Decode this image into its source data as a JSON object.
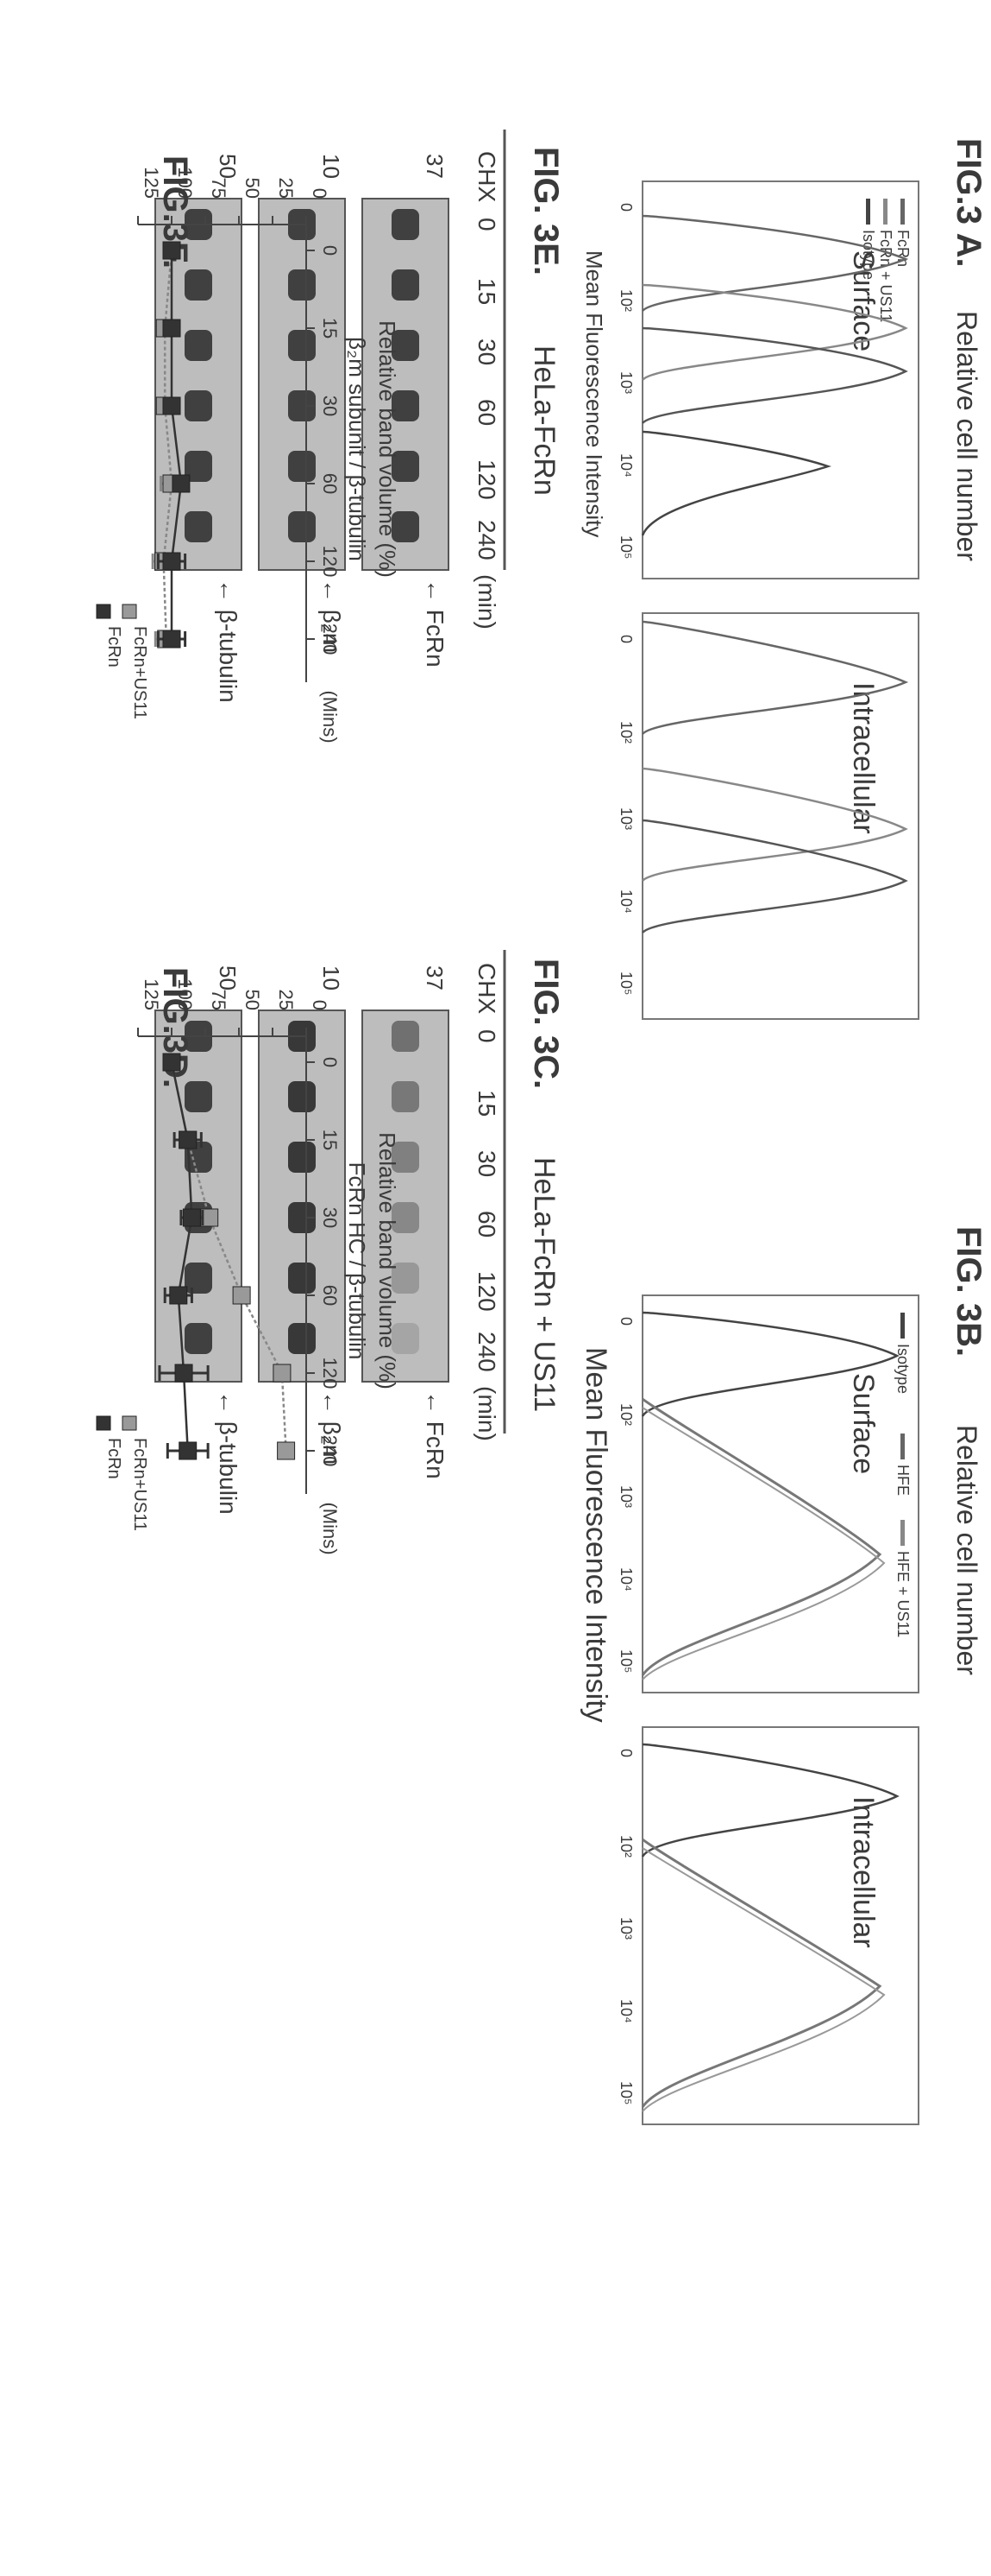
{
  "figure_labels": {
    "fig3a": "FIG.3 A.",
    "fig3b": "FIG. 3B.",
    "fig3c": "FIG. 3C.",
    "fig3d": "FIG.3D.",
    "fig3e": "FIG. 3E.",
    "fig3f": "FIG.3F."
  },
  "flow": {
    "ylabel": "Relative cell number",
    "xlabel": "Mean Fluorescence Intensity",
    "surface_title": "Surface",
    "intracellular_title": "Intracellular",
    "xticks": [
      "0",
      "10²",
      "10³",
      "10⁴",
      "10⁵"
    ],
    "legend_3a": [
      "FcRn",
      "FcRn + US11",
      "Isotype"
    ],
    "legend_3b": [
      "Isotype",
      "HFE",
      "HFE + US11"
    ]
  },
  "blots": {
    "3c": {
      "title": "HeLa-FcRn + US11",
      "lanes": [
        "CHX",
        "0",
        "15",
        "30",
        "60",
        "120",
        "240",
        "(min)"
      ],
      "rows": [
        {
          "mw": "37",
          "label": "FcRn",
          "intensity": [
            0.55,
            0.5,
            0.45,
            0.4,
            0.3,
            0.22
          ]
        },
        {
          "mw": "10",
          "label": "β₂m",
          "intensity": [
            0.9,
            0.9,
            0.9,
            0.9,
            0.9,
            0.9
          ]
        },
        {
          "mw": "50",
          "label": "β-tubulin",
          "intensity": [
            0.85,
            0.85,
            0.85,
            0.85,
            0.85,
            0.85
          ]
        }
      ]
    },
    "3e": {
      "title": "HeLa-FcRn",
      "lanes": [
        "CHX",
        "0",
        "15",
        "30",
        "60",
        "120",
        "240",
        "(min)"
      ],
      "rows": [
        {
          "mw": "37",
          "label": "FcRn",
          "intensity": [
            0.85,
            0.85,
            0.85,
            0.85,
            0.85,
            0.85
          ]
        },
        {
          "mw": "10",
          "label": "β₂m",
          "intensity": [
            0.85,
            0.85,
            0.85,
            0.85,
            0.85,
            0.85
          ]
        },
        {
          "mw": "50",
          "label": "β-tubulin",
          "intensity": [
            0.85,
            0.85,
            0.85,
            0.85,
            0.85,
            0.85
          ]
        }
      ]
    }
  },
  "chart_data": [
    {
      "type": "line",
      "panel": "FIG.3D.",
      "ylabel": "Relative band volume (%) FcRn HC / β-tubulin",
      "xlabel": "(Mins)",
      "categories": [
        "0",
        "15",
        "30",
        "60",
        "120",
        "240"
      ],
      "yticks": [
        "0",
        "25",
        "50",
        "75",
        "100",
        "125"
      ],
      "ylim": [
        0,
        125
      ],
      "series": [
        {
          "name": "FcRn+US11",
          "values": [
            100,
            88,
            72,
            48,
            18,
            15
          ]
        },
        {
          "name": "FcRn",
          "values": [
            100,
            88,
            85,
            95,
            91,
            88
          ],
          "errors": [
            0,
            10,
            8,
            10,
            18,
            15
          ]
        }
      ]
    },
    {
      "type": "line",
      "panel": "FIG.3F.",
      "ylabel": "Relative band volume (%) β₂m subunit / β-tubulin",
      "xlabel": "(Mins)",
      "categories": [
        "0",
        "15",
        "30",
        "60",
        "120",
        "240"
      ],
      "yticks": [
        "0",
        "25",
        "50",
        "75",
        "100",
        "125"
      ],
      "ylim": [
        0,
        125
      ],
      "series": [
        {
          "name": "FcRn+US11",
          "values": [
            100,
            105,
            105,
            100,
            106,
            104
          ],
          "errors": [
            0,
            5,
            5,
            8,
            8,
            8
          ]
        },
        {
          "name": "FcRn",
          "values": [
            100,
            100,
            100,
            93,
            100,
            100
          ],
          "errors": [
            0,
            5,
            5,
            5,
            10,
            10
          ]
        }
      ]
    }
  ]
}
